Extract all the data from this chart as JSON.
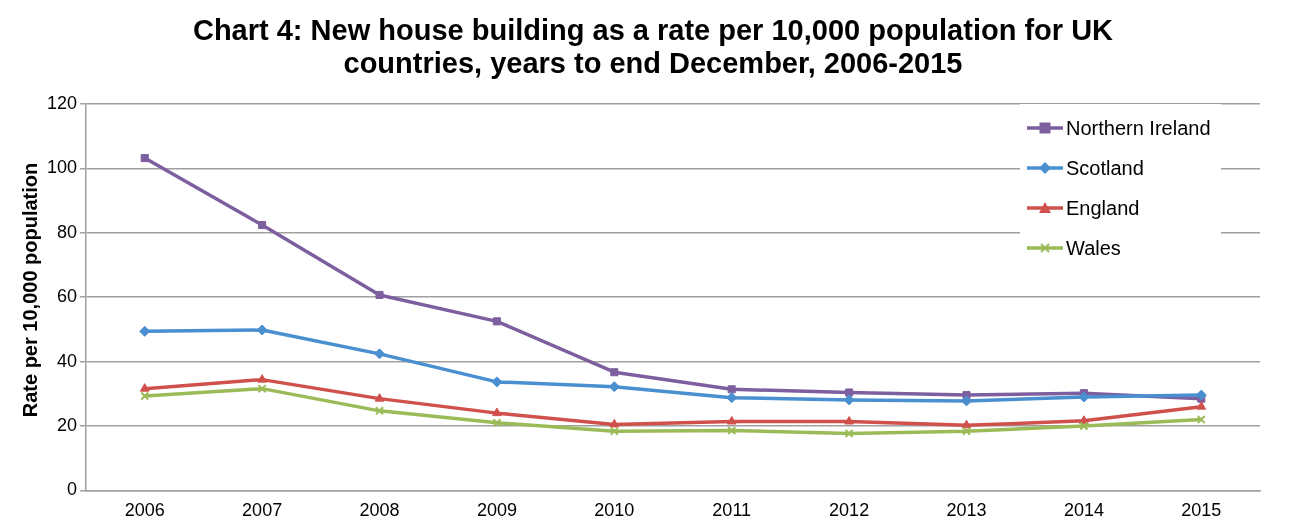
{
  "chart_data": {
    "type": "line",
    "title": "Chart 4: New house building as a rate per 10,000 population for UK countries, years to end December, 2006-2015",
    "ylabel": "Rate per 10,000 population",
    "categories": [
      "2006",
      "2007",
      "2008",
      "2009",
      "2010",
      "2011",
      "2012",
      "2013",
      "2014",
      "2015"
    ],
    "series": [
      {
        "name": "Northern Ireland",
        "color": "#7d5fa0",
        "marker": "square",
        "values": [
          103.2,
          82.4,
          60.7,
          52.5,
          36.7,
          31.4,
          30.4,
          29.6,
          30.2,
          28.5
        ]
      },
      {
        "name": "Scotland",
        "color": "#4a8fd0",
        "marker": "diamond",
        "values": [
          49.4,
          49.8,
          42.4,
          33.7,
          32.2,
          28.8,
          28.1,
          27.8,
          29.0,
          29.6
        ]
      },
      {
        "name": "England",
        "color": "#d0504c",
        "marker": "triangle",
        "values": [
          31.6,
          34.4,
          28.5,
          24.0,
          20.5,
          21.4,
          21.4,
          20.2,
          21.6,
          26.0
        ]
      },
      {
        "name": "Wales",
        "color": "#9bbb59",
        "marker": "cross",
        "values": [
          29.3,
          31.6,
          24.7,
          21.0,
          18.4,
          18.6,
          17.7,
          18.4,
          20.0,
          22.0
        ]
      }
    ],
    "ylim": [
      0,
      120
    ],
    "yticks": [
      0,
      20,
      40,
      60,
      80,
      100,
      120
    ],
    "grid": "y",
    "legend": "top right",
    "line_style": "solid"
  }
}
